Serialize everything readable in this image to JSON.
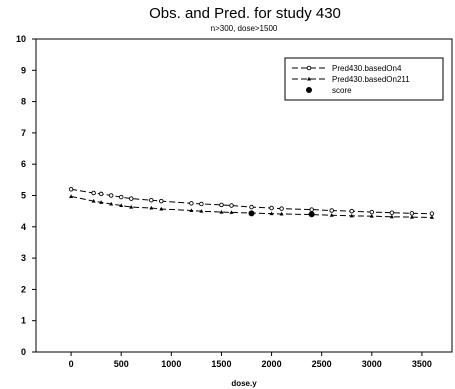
{
  "chart_data": {
    "type": "line",
    "title": "Obs. and Pred. for study 430",
    "subtitle": "n>300, dose>1500",
    "xlabel": "dose.y",
    "ylabel": "",
    "xlim": [
      -350,
      3800
    ],
    "ylim": [
      0,
      10
    ],
    "xticks": [
      0,
      500,
      1000,
      1500,
      2000,
      2500,
      3000,
      3500
    ],
    "yticks": [
      0,
      1,
      2,
      3,
      4,
      5,
      6,
      7,
      8,
      9,
      10
    ],
    "grid": false,
    "legend_position": "top-right",
    "series": [
      {
        "name": "Pred430.basedOn4",
        "style": "dashed",
        "marker": "open-circle",
        "x": [
          0,
          225,
          300,
          400,
          500,
          600,
          800,
          900,
          1200,
          1300,
          1500,
          1600,
          1800,
          2000,
          2100,
          2400,
          2600,
          2800,
          3000,
          3200,
          3400,
          3600
        ],
        "y": [
          5.2,
          5.08,
          5.05,
          5.0,
          4.95,
          4.9,
          4.85,
          4.82,
          4.75,
          4.73,
          4.7,
          4.68,
          4.63,
          4.6,
          4.58,
          4.55,
          4.52,
          4.5,
          4.47,
          4.45,
          4.43,
          4.42
        ]
      },
      {
        "name": "Pred430.basedOn211",
        "style": "dashed",
        "marker": "triangle",
        "x": [
          0,
          225,
          300,
          400,
          500,
          600,
          800,
          900,
          1200,
          1300,
          1500,
          1600,
          1800,
          2000,
          2100,
          2400,
          2600,
          2800,
          3000,
          3200,
          3400,
          3600
        ],
        "y": [
          4.97,
          4.82,
          4.78,
          4.73,
          4.68,
          4.63,
          4.6,
          4.57,
          4.52,
          4.5,
          4.47,
          4.46,
          4.44,
          4.42,
          4.41,
          4.39,
          4.37,
          4.35,
          4.34,
          4.32,
          4.31,
          4.3
        ]
      },
      {
        "name": "score",
        "style": "points",
        "marker": "filled-circle",
        "x": [
          1800,
          2400
        ],
        "y": [
          4.43,
          4.4
        ]
      }
    ]
  },
  "colors": {
    "line": "#000000",
    "background": "#ffffff"
  }
}
